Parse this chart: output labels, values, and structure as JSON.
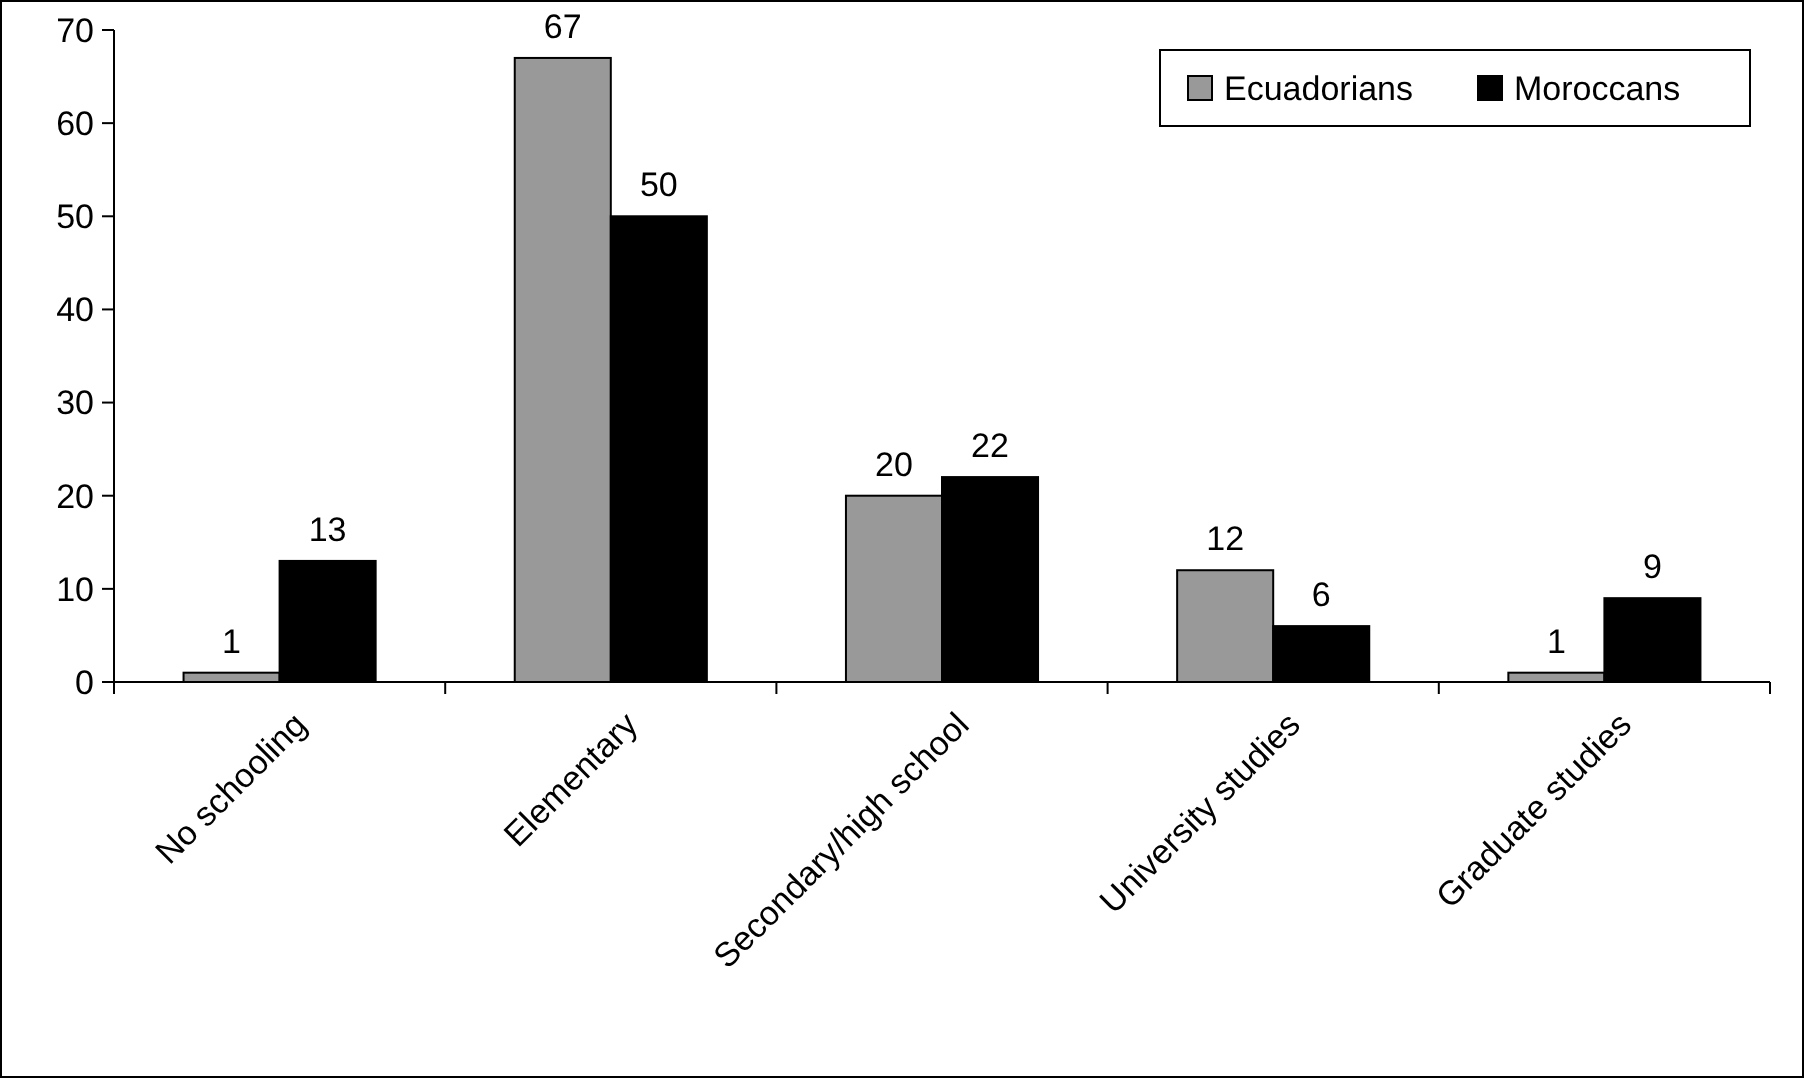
{
  "chart_data": {
    "type": "bar",
    "categories": [
      "No schooling",
      "Elementary",
      "Secondary/high school",
      "University studies",
      "Graduate studies"
    ],
    "series": [
      {
        "name": "Ecuadorians",
        "color": "#999999",
        "values": [
          1,
          67,
          20,
          12,
          1
        ]
      },
      {
        "name": "Moroccans",
        "color": "#000000",
        "values": [
          13,
          50,
          22,
          6,
          9
        ]
      }
    ],
    "ylim": [
      0,
      70
    ],
    "yticks": [
      0,
      10,
      20,
      30,
      40,
      50,
      60,
      70
    ],
    "grid": false,
    "legend": "top right",
    "data_labels": true
  }
}
